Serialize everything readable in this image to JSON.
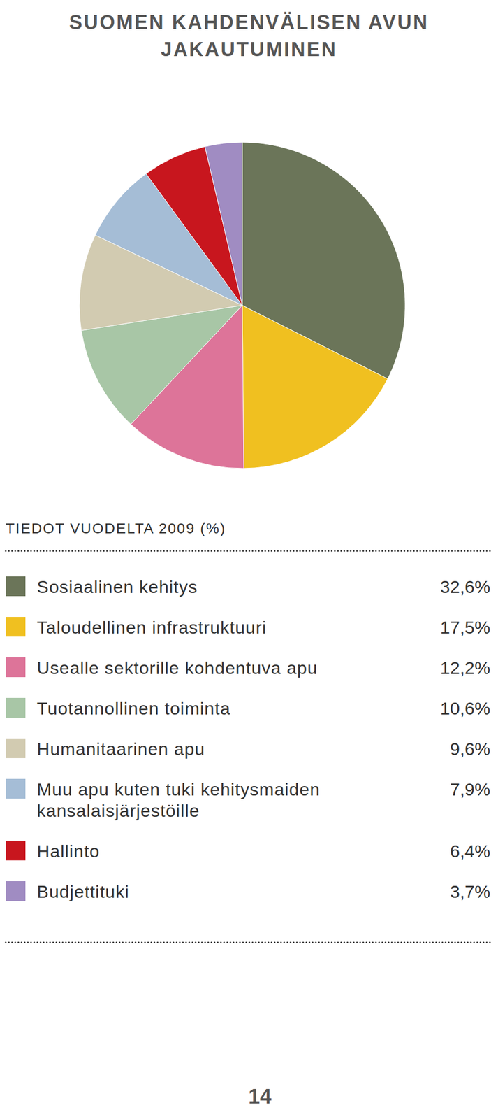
{
  "chart_data": {
    "type": "pie",
    "title": "SUOMEN KAHDENVÄLISEN AVUN JAKAUTUMINEN",
    "subtitle": "TIEDOT VUODELTA 2009 (%)",
    "categories": [
      "Sosiaalinen kehitys",
      "Taloudellinen infrastruktuuri",
      "Usealle sektorille kohdentuva apu",
      "Tuotannollinen toiminta",
      "Humanitaarinen apu",
      "Muu apu kuten tuki kehitysmaiden kansalaisjärjestöille",
      "Hallinto",
      "Budjettituki"
    ],
    "values": [
      32.6,
      17.5,
      12.2,
      10.6,
      9.6,
      7.9,
      6.4,
      3.7
    ],
    "value_labels": [
      "32,6%",
      "17,5%",
      "12,2%",
      "10,6%",
      "9,6%",
      "7,9%",
      "6,4%",
      "3,7%"
    ],
    "colors": [
      "#6b7559",
      "#f0c020",
      "#dd7499",
      "#a8c6a6",
      "#d2cbb1",
      "#a5bdd6",
      "#c8161e",
      "#a08cc2"
    ],
    "legend": "bottom",
    "annotations": [
      "14"
    ]
  }
}
